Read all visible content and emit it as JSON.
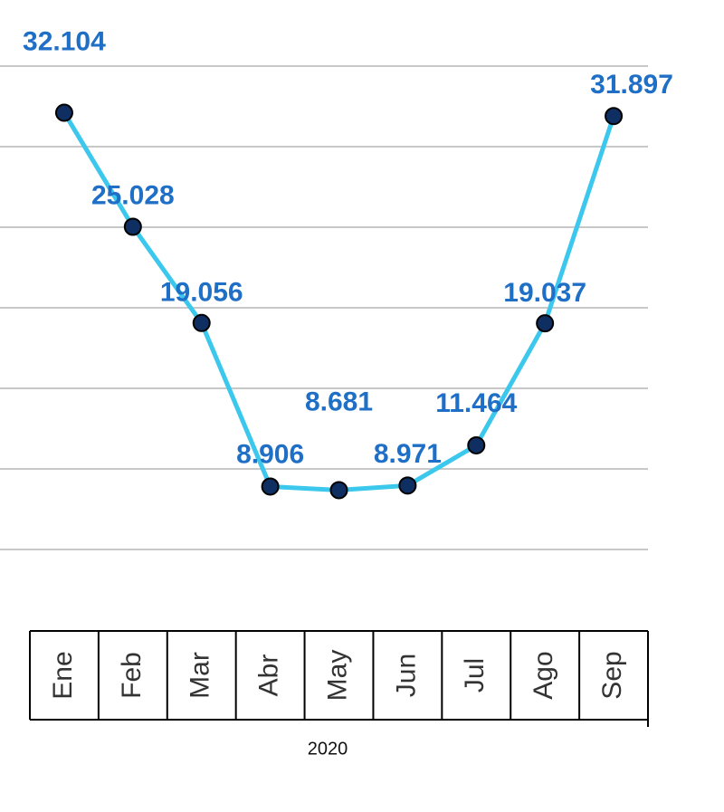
{
  "chart_data": {
    "type": "line",
    "x_label": "2020",
    "categories": [
      "Ene",
      "Feb",
      "Mar",
      "Abr",
      "May",
      "Jun",
      "Jul",
      "Ago",
      "Sep"
    ],
    "values": [
      32.104,
      25.028,
      19.056,
      8.906,
      8.681,
      8.971,
      11.464,
      19.037,
      31.897
    ],
    "color": "#3cc8ec",
    "marker_color": "#0f2f63",
    "ylim": [
      5,
      35
    ],
    "yticks": [
      5,
      10,
      15,
      20,
      25,
      30,
      35
    ],
    "grid": true
  }
}
